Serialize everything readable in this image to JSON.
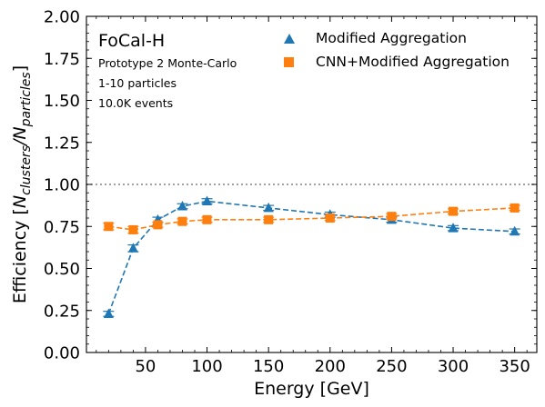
{
  "chart_data": {
    "type": "line",
    "xlabel": "Energy [GeV]",
    "ylabel_main": "Efficiency [",
    "ylabel_n1": "N",
    "ylabel_sub1": "clusters",
    "ylabel_slash": "/",
    "ylabel_n2": "N",
    "ylabel_sub2": "particles",
    "ylabel_close": "]",
    "xlim": [
      2,
      368
    ],
    "ylim": [
      0,
      2
    ],
    "x_ticks": [
      50,
      100,
      150,
      200,
      250,
      300,
      350
    ],
    "x_tick_labels": [
      "50",
      "100",
      "150",
      "200",
      "250",
      "300",
      "350"
    ],
    "y_ticks": [
      0,
      0.25,
      0.5,
      0.75,
      1.0,
      1.25,
      1.5,
      1.75,
      2.0
    ],
    "y_tick_labels": [
      "0.00",
      "0.25",
      "0.50",
      "0.75",
      "1.00",
      "1.25",
      "1.50",
      "1.75",
      "2.00"
    ],
    "reference_line": 1.0,
    "annotations": {
      "title": "FoCal-H",
      "line1": "Prototype 2 Monte-Carlo",
      "line2": "1-10 particles",
      "line3": "10.0K events"
    },
    "legend_position": "top-right",
    "series": [
      {
        "name": "Modified Aggregation",
        "color": "#1f77b4",
        "marker": "triangle",
        "x": [
          20,
          40,
          60,
          80,
          100,
          150,
          200,
          250,
          300,
          350
        ],
        "y": [
          0.23,
          0.62,
          0.79,
          0.87,
          0.9,
          0.86,
          0.82,
          0.79,
          0.74,
          0.72
        ],
        "err": [
          0.015,
          0.02,
          0.015,
          0.015,
          0.015,
          0.015,
          0.015,
          0.015,
          0.015,
          0.015
        ]
      },
      {
        "name": "CNN+Modified Aggregation",
        "color": "#ff7f0e",
        "marker": "square",
        "x": [
          20,
          40,
          60,
          80,
          100,
          150,
          200,
          250,
          300,
          350
        ],
        "y": [
          0.75,
          0.73,
          0.76,
          0.78,
          0.79,
          0.79,
          0.8,
          0.81,
          0.84,
          0.86
        ],
        "err": [
          0.02,
          0.02,
          0.015,
          0.015,
          0.015,
          0.015,
          0.015,
          0.015,
          0.015,
          0.015
        ]
      }
    ]
  }
}
